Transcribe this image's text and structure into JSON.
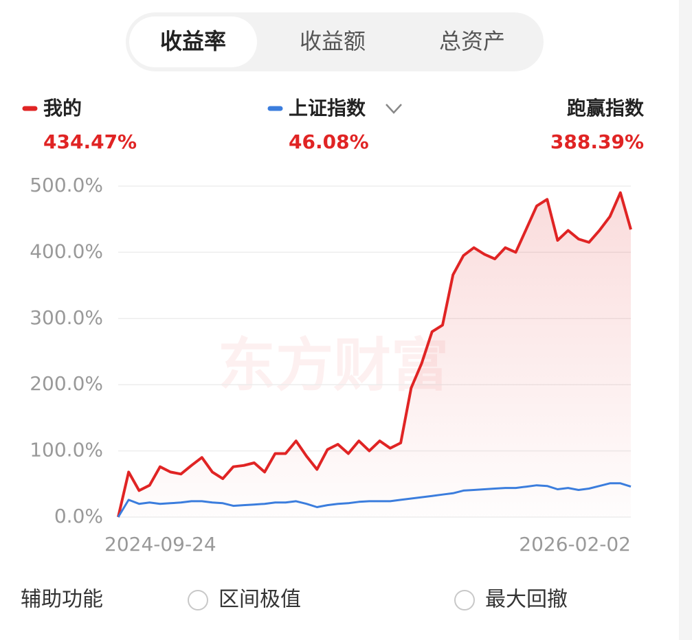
{
  "tabs": [
    "收益率",
    "收益额",
    "总资产"
  ],
  "active_tab": "收益率",
  "summary": [
    {
      "name": "我的",
      "value": "434.47%"
    },
    {
      "name": "上证指数",
      "value": "46.08%"
    },
    {
      "name": "跑赢指数",
      "value": "388.39%"
    }
  ],
  "watermark": "东方财富",
  "chart_data": {
    "type": "line",
    "categories": [
      "2024-09-24",
      null,
      null,
      null,
      null,
      null,
      null,
      null,
      null,
      null,
      null,
      null,
      null,
      null,
      null,
      null,
      null,
      null,
      null,
      null,
      null,
      null,
      null,
      null,
      null,
      null,
      null,
      null,
      null,
      null,
      null,
      null,
      null,
      null,
      null,
      null,
      null,
      null,
      null,
      null,
      null,
      null,
      null,
      null,
      null,
      null,
      null,
      null,
      null,
      "2026-02-02"
    ],
    "series": [
      {
        "name": "我的",
        "color": "#e02424",
        "area": true,
        "values": [
          0,
          68,
          40,
          48,
          76,
          68,
          65,
          78,
          90,
          68,
          58,
          76,
          78,
          82,
          68,
          96,
          96,
          115,
          92,
          72,
          102,
          110,
          96,
          115,
          100,
          115,
          104,
          112,
          195,
          232,
          280,
          290,
          366,
          395,
          407,
          397,
          390,
          407,
          400,
          435,
          470,
          480,
          418,
          433,
          420,
          415,
          433,
          454,
          490,
          434.47
        ]
      },
      {
        "name": "上证指数",
        "color": "#3b7ddd",
        "area": false,
        "values": [
          0,
          26,
          20,
          22,
          20,
          21,
          22,
          24,
          24,
          22,
          21,
          17,
          18,
          19,
          20,
          22,
          22,
          24,
          20,
          15,
          18,
          20,
          21,
          23,
          24,
          24,
          24,
          26,
          28,
          30,
          32,
          34,
          36,
          40,
          41,
          42,
          43,
          44,
          44,
          46,
          48,
          47,
          42,
          44,
          41,
          43,
          47,
          51,
          51,
          46.08
        ]
      }
    ],
    "ylim": [
      0,
      500
    ],
    "yticks": [
      {
        "value": 0,
        "label": "0.0%"
      },
      {
        "value": 100,
        "label": "100.0%"
      },
      {
        "value": 200,
        "label": "200.0%"
      },
      {
        "value": 300,
        "label": "300.0%"
      },
      {
        "value": 400,
        "label": "400.0%"
      },
      {
        "value": 500,
        "label": "500.0%"
      }
    ],
    "grid": true
  },
  "footer": {
    "label": "辅助功能",
    "options": [
      "区间极值",
      "最大回撤"
    ]
  }
}
